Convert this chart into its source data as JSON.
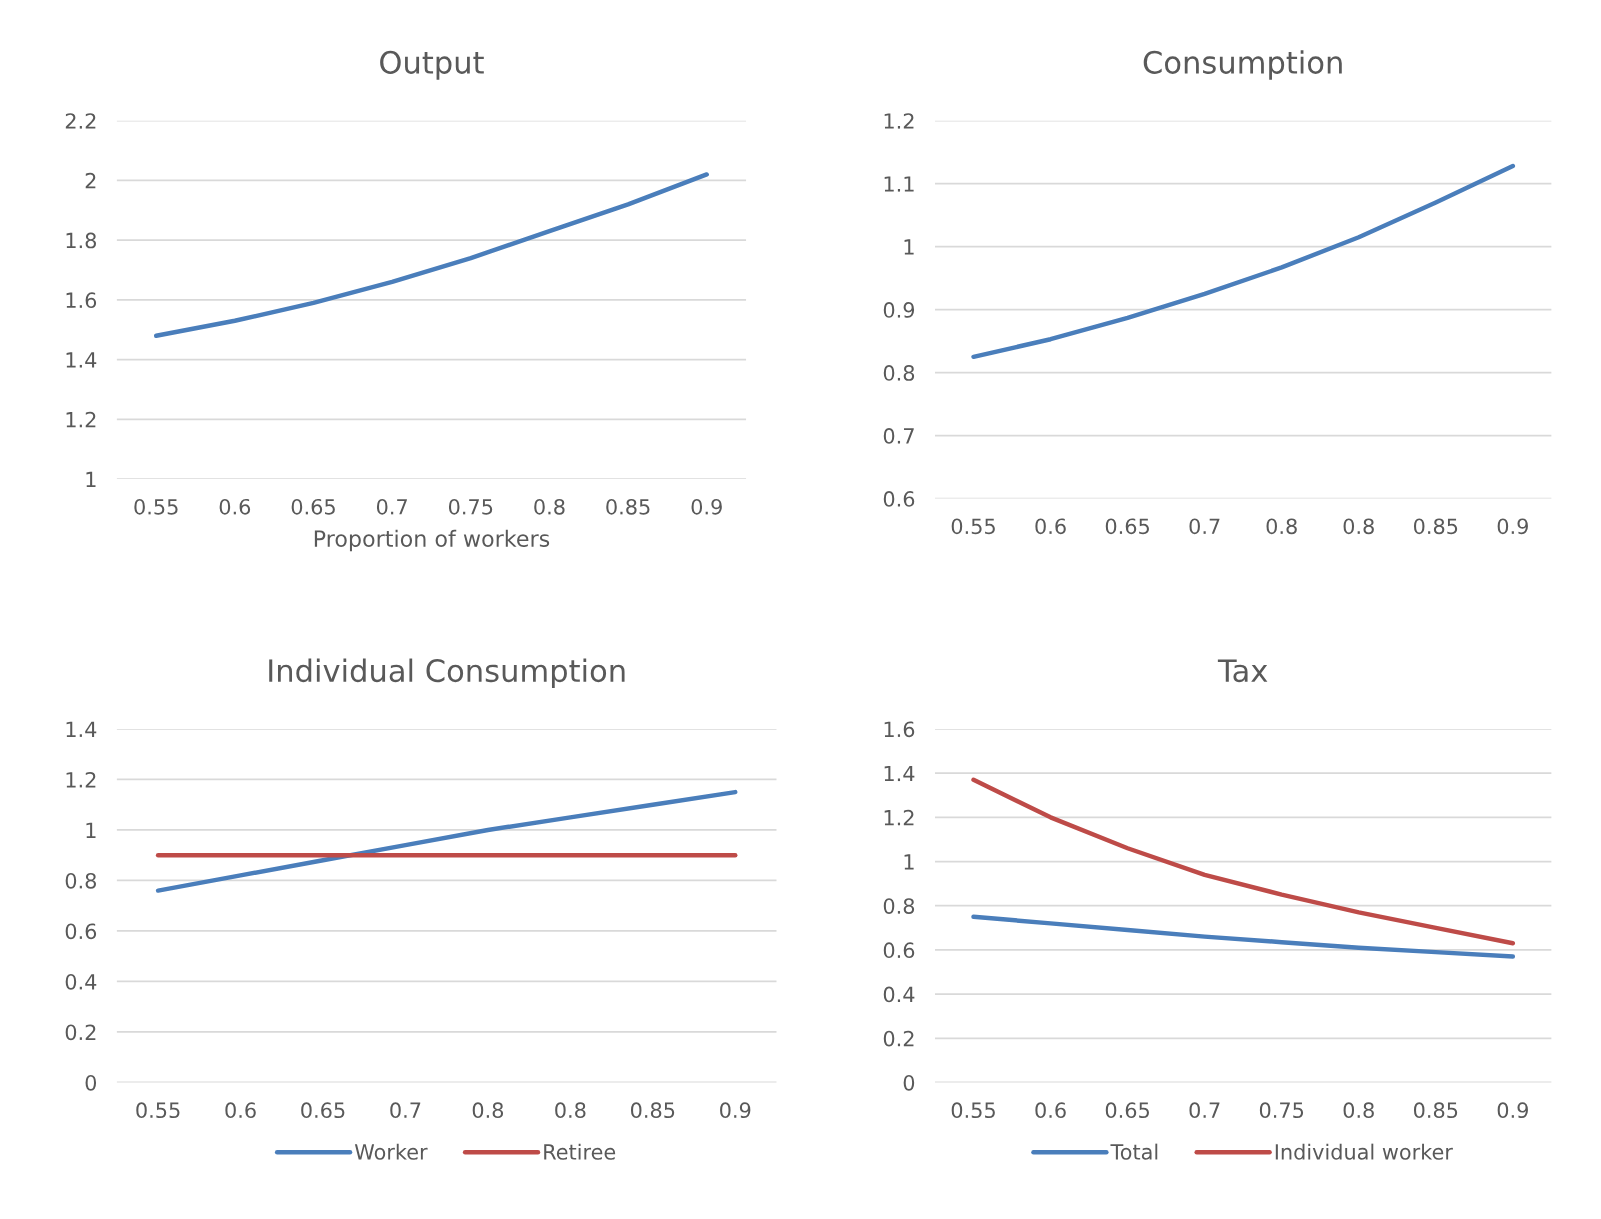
{
  "chart_data": [
    {
      "type": "line",
      "title": "Output",
      "xlabel": "Proportion of workers",
      "categories": [
        "0.55",
        "0.6",
        "0.65",
        "0.7",
        "0.75",
        "0.8",
        "0.85",
        "0.9"
      ],
      "series": [
        {
          "color": "#4a7ebb",
          "values": [
            1.48,
            1.53,
            1.59,
            1.66,
            1.74,
            1.83,
            1.92,
            2.02
          ]
        }
      ],
      "ylim": [
        1,
        2.2
      ],
      "yticks": [
        1,
        1.2,
        1.4,
        1.6,
        1.8,
        2,
        2.2
      ],
      "grid": "y"
    },
    {
      "type": "line",
      "title": "Consumption",
      "categories": [
        "0.55",
        "0.6",
        "0.65",
        "0.7",
        "0.8",
        "0.8",
        "0.85",
        "0.9"
      ],
      "series": [
        {
          "color": "#4a7ebb",
          "values": [
            0.825,
            0.853,
            0.887,
            0.925,
            0.967,
            1.015,
            1.07,
            1.128
          ]
        }
      ],
      "ylim": [
        0.6,
        1.2
      ],
      "yticks": [
        0.6,
        0.7,
        0.8,
        0.9,
        1,
        1.1,
        1.2
      ],
      "grid": "y"
    },
    {
      "type": "line",
      "title": "Individual Consumption",
      "categories": [
        "0.55",
        "0.6",
        "0.65",
        "0.7",
        "0.8",
        "0.8",
        "0.85",
        "0.9"
      ],
      "series": [
        {
          "name": "Worker",
          "color": "#4a7ebb",
          "values": [
            0.76,
            0.82,
            0.88,
            0.94,
            1.0,
            1.05,
            1.1,
            1.15
          ]
        },
        {
          "name": "Retiree",
          "color": "#be4b48",
          "values": [
            0.9,
            0.9,
            0.9,
            0.9,
            0.9,
            0.9,
            0.9,
            0.9
          ]
        }
      ],
      "ylim": [
        0,
        1.4
      ],
      "yticks": [
        0,
        0.2,
        0.4,
        0.6,
        0.8,
        1,
        1.2,
        1.4
      ],
      "grid": "y",
      "legend": "bottom"
    },
    {
      "type": "line",
      "title": "Tax",
      "categories": [
        "0.55",
        "0.6",
        "0.65",
        "0.7",
        "0.75",
        "0.8",
        "0.85",
        "0.9"
      ],
      "series": [
        {
          "name": "Total",
          "color": "#4a7ebb",
          "values": [
            0.75,
            0.72,
            0.69,
            0.66,
            0.635,
            0.61,
            0.59,
            0.57
          ]
        },
        {
          "name": "Individual worker",
          "color": "#be4b48",
          "values": [
            1.37,
            1.2,
            1.06,
            0.94,
            0.85,
            0.77,
            0.7,
            0.63
          ]
        }
      ],
      "ylim": [
        0,
        1.6
      ],
      "yticks": [
        0,
        0.2,
        0.4,
        0.6,
        0.8,
        1,
        1.2,
        1.4,
        1.6
      ],
      "grid": "y",
      "legend": "bottom"
    }
  ]
}
